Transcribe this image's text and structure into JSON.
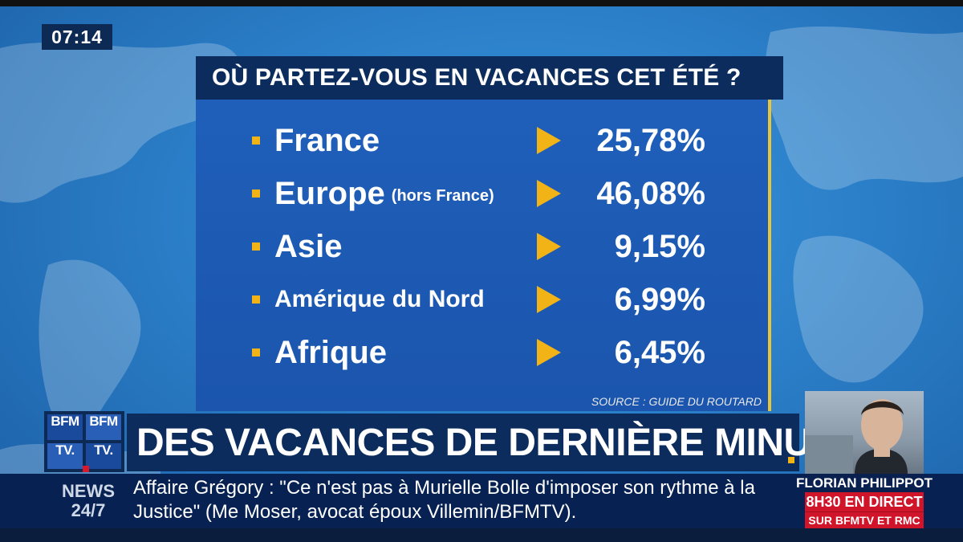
{
  "clock": "07:14",
  "question": "OÙ PARTEZ-VOUS EN VACANCES CET ÉTÉ ?",
  "rows": [
    {
      "label": "France",
      "sub": "",
      "value": "25,78%"
    },
    {
      "label": "Europe",
      "sub": "(hors France)",
      "value": "46,08%"
    },
    {
      "label": "Asie",
      "sub": "",
      "value": "9,15%"
    },
    {
      "label": "Amérique du Nord",
      "sub": "",
      "value": "6,99%"
    },
    {
      "label": "Afrique",
      "sub": "",
      "value": "6,45%"
    }
  ],
  "source": "SOURCE : GUIDE DU ROUTARD",
  "logo": {
    "a": "BFM",
    "b": "TV."
  },
  "headline": "DES VACANCES DE DERNIÈRE MINUTE",
  "news_brand": {
    "line1": "NEWS",
    "line2": "24/7"
  },
  "ticker": "Affaire Grégory : \"Ce n'est pas à Murielle Bolle d'imposer son rythme à la Justice\" (Me Moser, avocat époux Villemin/BFMTV).",
  "guest": {
    "name": "FLORIAN PHILIPPOT",
    "time": "8H30 EN DIRECT",
    "channel": "SUR BFMTV ET RMC"
  },
  "colors": {
    "accent": "#f2b316",
    "navy": "#0b2c5c",
    "panel": "#1f5fba",
    "live_red": "#d0152a"
  }
}
